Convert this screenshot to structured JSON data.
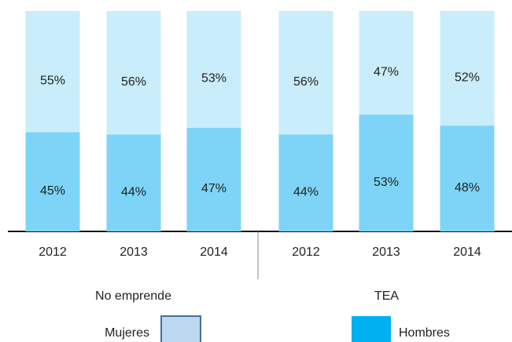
{
  "chart_data": {
    "type": "stacked_bar_100",
    "groups": [
      {
        "label": "No emprende",
        "categories": [
          "2012",
          "2013",
          "2014"
        ]
      },
      {
        "label": "TEA",
        "categories": [
          "2012",
          "2013",
          "2014"
        ]
      }
    ],
    "series": [
      {
        "name": "Hombres",
        "color": "#7dd4f6",
        "legend_color": "#00b0f0",
        "values": [
          45,
          44,
          47,
          44,
          53,
          48
        ],
        "value_labels": [
          "45%",
          "44%",
          "47%",
          "44%",
          "53%",
          "48%"
        ]
      },
      {
        "name": "Mujeres",
        "color": "#c9edfa",
        "legend_color": "#bdd7ee",
        "values": [
          55,
          56,
          53,
          56,
          47,
          52
        ],
        "value_labels": [
          "55%",
          "56%",
          "53%",
          "56%",
          "47%",
          "52%"
        ]
      }
    ],
    "ylim": [
      0,
      100
    ]
  }
}
